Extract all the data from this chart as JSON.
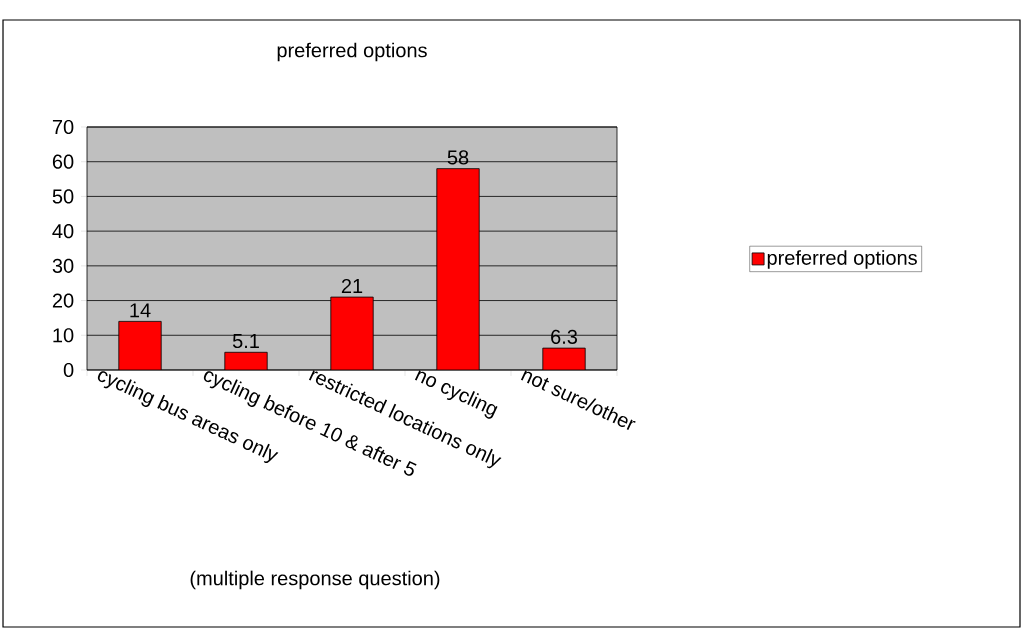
{
  "chart_data": {
    "type": "bar",
    "title": "preferred options",
    "categories": [
      "cycling bus areas only",
      "cycling before 10 & after 5",
      "restricted locations only",
      "no cycling",
      "not sure/other"
    ],
    "series": [
      {
        "name": "preferred options",
        "color": "#ff0000",
        "values": [
          14,
          5.1,
          21,
          58,
          6.3
        ]
      }
    ],
    "ylim": [
      0,
      70
    ],
    "yticks": [
      0,
      10,
      20,
      30,
      40,
      50,
      60,
      70
    ],
    "grid": "y",
    "legend": "right",
    "data_labels": true,
    "annotations": [
      "(multiple response question)"
    ]
  }
}
